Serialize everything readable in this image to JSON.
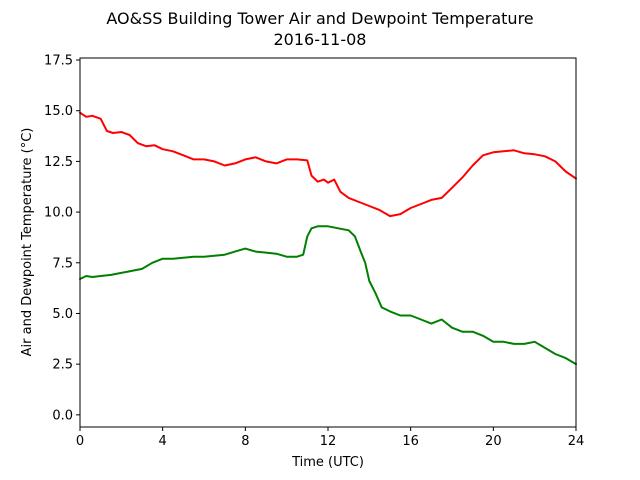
{
  "chart_data": {
    "type": "line",
    "title": "AO&SS Building Tower Air and Dewpoint Temperature",
    "subtitle": "2016-11-08",
    "xlabel": "Time (UTC)",
    "ylabel": "Air and Dewpoint Temperature (°C)",
    "xlim": [
      0,
      24
    ],
    "ylim": [
      -0.6,
      17.6
    ],
    "xticks": [
      0,
      4,
      8,
      12,
      16,
      20,
      24
    ],
    "xtick_labels": [
      "0",
      "4",
      "8",
      "12",
      "16",
      "20",
      "24"
    ],
    "yticks": [
      0.0,
      2.5,
      5.0,
      7.5,
      10.0,
      12.5,
      15.0,
      17.5
    ],
    "ytick_labels": [
      "0.0",
      "2.5",
      "5.0",
      "7.5",
      "10.0",
      "12.5",
      "15.0",
      "17.5"
    ],
    "grid": false,
    "legend": "none",
    "series": [
      {
        "color": "#ff0000",
        "x": [
          0,
          0.3,
          0.6,
          1.0,
          1.3,
          1.6,
          2.0,
          2.4,
          2.8,
          3.2,
          3.6,
          4.0,
          4.5,
          5.0,
          5.5,
          6.0,
          6.5,
          7.0,
          7.5,
          8.0,
          8.5,
          9.0,
          9.5,
          10.0,
          10.5,
          11.0,
          11.2,
          11.5,
          11.8,
          12.0,
          12.3,
          12.6,
          13.0,
          13.5,
          14.0,
          14.5,
          15.0,
          15.5,
          16.0,
          16.5,
          17.0,
          17.5,
          18.0,
          18.5,
          19.0,
          19.5,
          20.0,
          20.5,
          21.0,
          21.5,
          22.0,
          22.5,
          23.0,
          23.5,
          24.0
        ],
        "y": [
          14.9,
          14.7,
          14.75,
          14.6,
          14.0,
          13.9,
          13.95,
          13.8,
          13.4,
          13.25,
          13.3,
          13.1,
          13.0,
          12.8,
          12.6,
          12.6,
          12.5,
          12.3,
          12.4,
          12.6,
          12.7,
          12.5,
          12.4,
          12.6,
          12.6,
          12.55,
          11.8,
          11.5,
          11.6,
          11.45,
          11.6,
          11.0,
          10.7,
          10.5,
          10.3,
          10.1,
          9.8,
          9.9,
          10.2,
          10.4,
          10.6,
          10.7,
          11.2,
          11.7,
          12.3,
          12.8,
          12.95,
          13.0,
          13.05,
          12.9,
          12.85,
          12.75,
          12.5,
          12.0,
          11.65
        ]
      },
      {
        "color": "#008000",
        "x": [
          0,
          0.3,
          0.6,
          1.0,
          1.5,
          2.0,
          2.5,
          3.0,
          3.5,
          4.0,
          4.5,
          5.0,
          5.5,
          6.0,
          6.5,
          7.0,
          7.5,
          8.0,
          8.5,
          9.0,
          9.5,
          10.0,
          10.5,
          10.8,
          11.0,
          11.2,
          11.5,
          12.0,
          12.5,
          13.0,
          13.3,
          13.6,
          13.8,
          14.0,
          14.3,
          14.6,
          15.0,
          15.5,
          16.0,
          16.5,
          17.0,
          17.5,
          18.0,
          18.5,
          19.0,
          19.5,
          20.0,
          20.5,
          21.0,
          21.5,
          22.0,
          22.5,
          23.0,
          23.5,
          24.0
        ],
        "y": [
          6.7,
          6.85,
          6.8,
          6.85,
          6.9,
          7.0,
          7.1,
          7.2,
          7.5,
          7.7,
          7.7,
          7.75,
          7.8,
          7.8,
          7.85,
          7.9,
          8.05,
          8.2,
          8.05,
          8.0,
          7.95,
          7.8,
          7.8,
          7.9,
          8.8,
          9.2,
          9.3,
          9.3,
          9.2,
          9.1,
          8.8,
          8.0,
          7.5,
          6.6,
          6.0,
          5.3,
          5.1,
          4.9,
          4.9,
          4.7,
          4.5,
          4.7,
          4.3,
          4.1,
          4.1,
          3.9,
          3.6,
          3.6,
          3.5,
          3.5,
          3.6,
          3.3,
          3.0,
          2.8,
          2.5
        ]
      }
    ]
  }
}
